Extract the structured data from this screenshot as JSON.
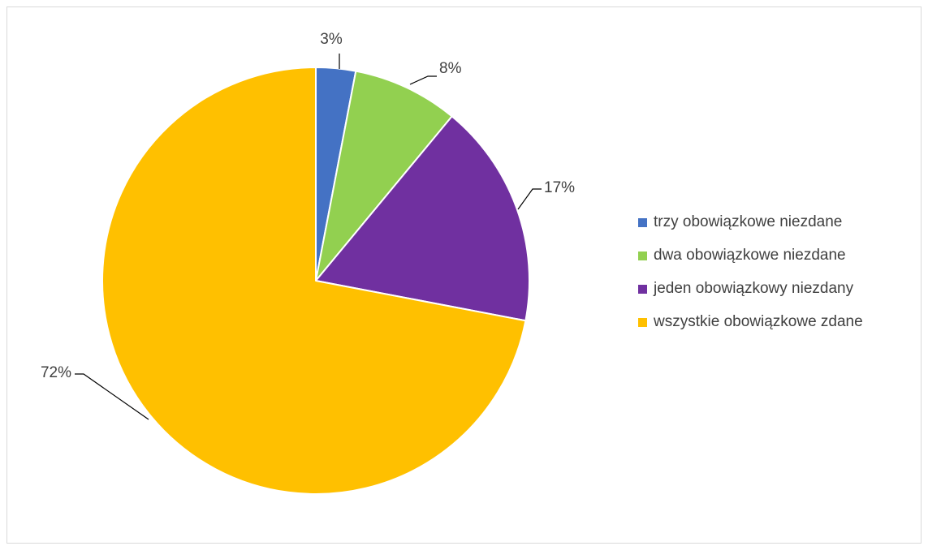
{
  "chart_data": {
    "type": "pie",
    "categories": [
      "trzy obowiązkowe niezdane",
      "dwa obowiązkowe niezdane",
      "jeden obowiązkowy niezdany",
      "wszystkie obowiązkowe zdane"
    ],
    "values": [
      3,
      8,
      17,
      72
    ],
    "data_labels": [
      "3%",
      "8%",
      "17%",
      "72%"
    ],
    "colors": [
      "#4472C4",
      "#92D050",
      "#7030A0",
      "#FFC000"
    ],
    "legend_position": "right"
  }
}
